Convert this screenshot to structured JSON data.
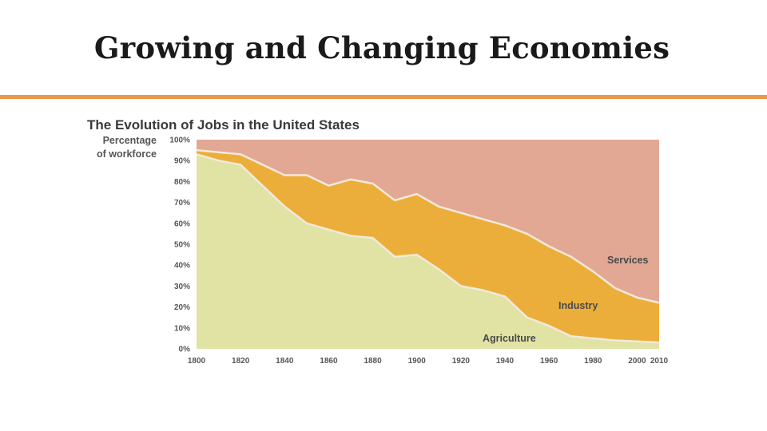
{
  "slide": {
    "title": "Growing and Changing Economies"
  },
  "colors": {
    "rule": "#e8994a",
    "agriculture": "#e0e3a4",
    "industry": "#ecae3a",
    "services": "#e2a893",
    "boundary": "#f3e9dc",
    "title_text": "#1a1a1a"
  },
  "chart_data": {
    "type": "area",
    "stacked": true,
    "title": "The Evolution of Jobs in the United States",
    "ylabel": [
      "Percentage",
      "of workforce"
    ],
    "xlabel": "",
    "xlim": [
      1800,
      2010
    ],
    "ylim": [
      0,
      100
    ],
    "grid": false,
    "x": [
      1800,
      1810,
      1820,
      1830,
      1840,
      1850,
      1860,
      1870,
      1880,
      1890,
      1900,
      1910,
      1920,
      1930,
      1940,
      1950,
      1960,
      1970,
      1980,
      1990,
      2000,
      2010
    ],
    "series": [
      {
        "name": "Agriculture",
        "values": [
          93,
          90,
          88,
          78,
          68,
          60,
          57,
          54,
          53,
          44,
          45,
          38,
          30,
          28,
          25,
          15,
          11,
          6,
          5,
          4,
          3.5,
          3
        ]
      },
      {
        "name": "Industry",
        "values": [
          2,
          4,
          5,
          10,
          15,
          23,
          21,
          27,
          26,
          27,
          29,
          30,
          35,
          34,
          34,
          40,
          38,
          38,
          32,
          25,
          21,
          19
        ]
      },
      {
        "name": "Services",
        "values": [
          5,
          6,
          7,
          12,
          17,
          17,
          22,
          19,
          21,
          29,
          26,
          32,
          35,
          38,
          41,
          45,
          51,
          56,
          63,
          71,
          75.5,
          78
        ]
      }
    ],
    "xticks": [
      "1800",
      "1820",
      "1840",
      "1860",
      "1880",
      "1900",
      "1920",
      "1940",
      "1960",
      "1980",
      "2000",
      "2010"
    ],
    "yticks": [
      "0%",
      "10%",
      "20%",
      "30%",
      "40%",
      "50%",
      "60%",
      "70%",
      "80%",
      "90%",
      "100%"
    ],
    "annotations": [
      "Services",
      "Industry",
      "Agriculture"
    ]
  }
}
